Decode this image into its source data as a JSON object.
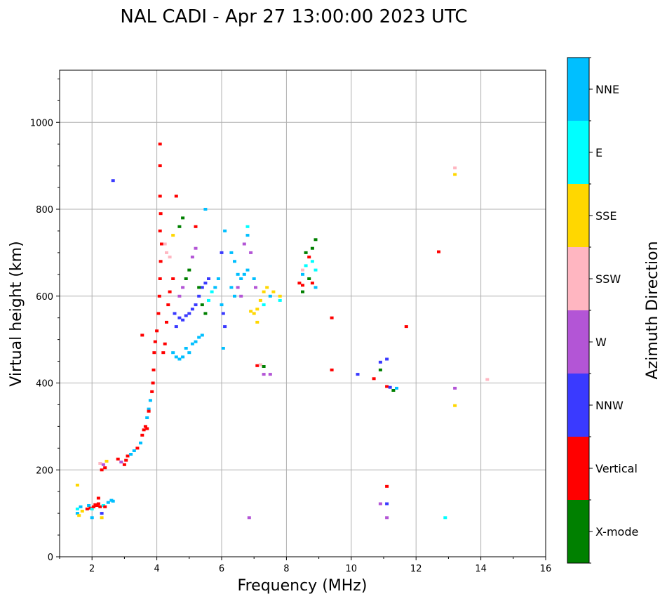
{
  "chart_data": {
    "type": "scatter",
    "title": "NAL CADI - Apr 27 13:00:00 2023 UTC",
    "xlabel": "Frequency (MHz)",
    "ylabel": "Virtual height (km)",
    "xlim": [
      1,
      16
    ],
    "ylim": [
      0,
      1120
    ],
    "xticks": [
      2,
      4,
      6,
      8,
      10,
      12,
      14,
      16
    ],
    "yticks": [
      0,
      200,
      400,
      600,
      800,
      1000
    ],
    "grid": true,
    "colorbar": {
      "label": "Azimuth Direction",
      "categories": [
        "X-mode",
        "Vertical",
        "NNW",
        "W",
        "SSW",
        "SSE",
        "E",
        "NNE"
      ],
      "colors": [
        "#008000",
        "#ff0000",
        "#3a3aff",
        "#b355d6",
        "#ffb6c1",
        "#ffd700",
        "#00ffff",
        "#00bfff"
      ]
    },
    "points": [
      [
        1.55,
        100,
        "NNE"
      ],
      [
        1.55,
        110,
        "E"
      ],
      [
        1.6,
        95,
        "SSE"
      ],
      [
        1.65,
        115,
        "NNE"
      ],
      [
        1.7,
        105,
        "SSE"
      ],
      [
        1.55,
        165,
        "SSE"
      ],
      [
        1.85,
        110,
        "Vertical"
      ],
      [
        1.9,
        118,
        "NNE"
      ],
      [
        1.95,
        112,
        "Vertical"
      ],
      [
        2.0,
        110,
        "E"
      ],
      [
        2.05,
        115,
        "Vertical"
      ],
      [
        2.1,
        120,
        "Vertical"
      ],
      [
        2.15,
        118,
        "Vertical"
      ],
      [
        2.2,
        122,
        "Vertical"
      ],
      [
        2.25,
        115,
        "Vertical"
      ],
      [
        2.3,
        100,
        "NNW"
      ],
      [
        2.35,
        118,
        "E"
      ],
      [
        2.4,
        115,
        "Vertical"
      ],
      [
        2.5,
        125,
        "NNE"
      ],
      [
        2.6,
        130,
        "NNE"
      ],
      [
        2.65,
        128,
        "NNE"
      ],
      [
        2.0,
        90,
        "NNE"
      ],
      [
        2.3,
        90,
        "SSE"
      ],
      [
        2.2,
        135,
        "Vertical"
      ],
      [
        2.25,
        215,
        "SSW"
      ],
      [
        2.35,
        212,
        "W"
      ],
      [
        2.4,
        205,
        "Vertical"
      ],
      [
        2.45,
        220,
        "SSE"
      ],
      [
        2.3,
        200,
        "Vertical"
      ],
      [
        2.8,
        225,
        "Vertical"
      ],
      [
        2.9,
        218,
        "W"
      ],
      [
        3.0,
        212,
        "Vertical"
      ],
      [
        3.05,
        222,
        "Vertical"
      ],
      [
        3.1,
        232,
        "Vertical"
      ],
      [
        3.2,
        236,
        "NNE"
      ],
      [
        3.3,
        244,
        "NNE"
      ],
      [
        3.4,
        250,
        "Vertical"
      ],
      [
        3.5,
        262,
        "NNE"
      ],
      [
        3.55,
        280,
        "Vertical"
      ],
      [
        3.6,
        292,
        "Vertical"
      ],
      [
        3.65,
        300,
        "Vertical"
      ],
      [
        3.7,
        320,
        "NNE"
      ],
      [
        3.75,
        340,
        "NNE"
      ],
      [
        3.8,
        360,
        "NNE"
      ],
      [
        3.85,
        380,
        "Vertical"
      ],
      [
        3.88,
        400,
        "Vertical"
      ],
      [
        3.9,
        430,
        "Vertical"
      ],
      [
        3.92,
        470,
        "Vertical"
      ],
      [
        3.95,
        495,
        "Vertical"
      ],
      [
        3.55,
        510,
        "Vertical"
      ],
      [
        3.75,
        335,
        "Vertical"
      ],
      [
        3.7,
        295,
        "Vertical"
      ],
      [
        4.0,
        520,
        "Vertical"
      ],
      [
        4.05,
        560,
        "Vertical"
      ],
      [
        4.08,
        600,
        "Vertical"
      ],
      [
        4.1,
        640,
        "Vertical"
      ],
      [
        4.12,
        680,
        "Vertical"
      ],
      [
        4.15,
        720,
        "Vertical"
      ],
      [
        4.1,
        750,
        "Vertical"
      ],
      [
        4.12,
        790,
        "Vertical"
      ],
      [
        4.1,
        830,
        "Vertical"
      ],
      [
        4.1,
        900,
        "Vertical"
      ],
      [
        4.1,
        950,
        "Vertical"
      ],
      [
        4.2,
        470,
        "Vertical"
      ],
      [
        4.25,
        490,
        "Vertical"
      ],
      [
        4.3,
        540,
        "Vertical"
      ],
      [
        4.35,
        580,
        "Vertical"
      ],
      [
        4.4,
        610,
        "Vertical"
      ],
      [
        4.3,
        700,
        "SSW"
      ],
      [
        4.4,
        690,
        "SSW"
      ],
      [
        4.25,
        720,
        "SSW"
      ],
      [
        4.5,
        640,
        "Vertical"
      ],
      [
        4.55,
        560,
        "NNW"
      ],
      [
        4.6,
        530,
        "NNW"
      ],
      [
        4.5,
        470,
        "NNE"
      ],
      [
        4.6,
        460,
        "NNE"
      ],
      [
        4.7,
        455,
        "NNE"
      ],
      [
        4.8,
        460,
        "NNE"
      ],
      [
        4.9,
        480,
        "NNE"
      ],
      [
        5.0,
        470,
        "NNE"
      ],
      [
        5.1,
        490,
        "NNE"
      ],
      [
        5.2,
        495,
        "NNE"
      ],
      [
        5.3,
        505,
        "NNE"
      ],
      [
        5.4,
        510,
        "NNE"
      ],
      [
        4.7,
        550,
        "NNW"
      ],
      [
        4.8,
        545,
        "NNW"
      ],
      [
        4.9,
        555,
        "NNW"
      ],
      [
        5.0,
        560,
        "NNW"
      ],
      [
        5.1,
        570,
        "NNW"
      ],
      [
        5.2,
        580,
        "NNW"
      ],
      [
        5.3,
        600,
        "NNW"
      ],
      [
        5.4,
        620,
        "NNW"
      ],
      [
        5.5,
        630,
        "NNW"
      ],
      [
        5.6,
        640,
        "NNW"
      ],
      [
        4.7,
        600,
        "W"
      ],
      [
        4.8,
        620,
        "W"
      ],
      [
        4.9,
        640,
        "X-mode"
      ],
      [
        5.0,
        660,
        "X-mode"
      ],
      [
        5.1,
        690,
        "W"
      ],
      [
        5.2,
        710,
        "W"
      ],
      [
        5.3,
        620,
        "X-mode"
      ],
      [
        5.4,
        580,
        "X-mode"
      ],
      [
        5.5,
        560,
        "X-mode"
      ],
      [
        5.6,
        590,
        "E"
      ],
      [
        5.7,
        610,
        "E"
      ],
      [
        5.8,
        620,
        "NNE"
      ],
      [
        5.9,
        640,
        "NNE"
      ],
      [
        6.0,
        580,
        "NNE"
      ],
      [
        6.05,
        560,
        "NNW"
      ],
      [
        6.1,
        530,
        "NNW"
      ],
      [
        6.05,
        480,
        "NNE"
      ],
      [
        6.0,
        700,
        "NNW"
      ],
      [
        6.1,
        750,
        "NNE"
      ],
      [
        5.5,
        800,
        "NNE"
      ],
      [
        4.7,
        760,
        "X-mode"
      ],
      [
        4.8,
        780,
        "X-mode"
      ],
      [
        4.6,
        830,
        "Vertical"
      ],
      [
        4.5,
        740,
        "SSE"
      ],
      [
        5.2,
        760,
        "Vertical"
      ],
      [
        6.3,
        700,
        "NNE"
      ],
      [
        6.4,
        680,
        "NNE"
      ],
      [
        6.5,
        650,
        "NNE"
      ],
      [
        6.6,
        640,
        "NNE"
      ],
      [
        6.7,
        650,
        "NNE"
      ],
      [
        6.8,
        660,
        "NNE"
      ],
      [
        6.5,
        620,
        "W"
      ],
      [
        6.6,
        600,
        "W"
      ],
      [
        6.7,
        720,
        "W"
      ],
      [
        6.8,
        740,
        "NNE"
      ],
      [
        6.9,
        700,
        "W"
      ],
      [
        7.0,
        640,
        "NNE"
      ],
      [
        7.05,
        620,
        "W"
      ],
      [
        6.8,
        760,
        "E"
      ],
      [
        6.3,
        620,
        "NNE"
      ],
      [
        6.4,
        600,
        "NNE"
      ],
      [
        6.9,
        565,
        "SSE"
      ],
      [
        7.0,
        560,
        "SSE"
      ],
      [
        7.1,
        570,
        "SSE"
      ],
      [
        7.2,
        590,
        "SSE"
      ],
      [
        7.3,
        610,
        "SSE"
      ],
      [
        7.4,
        620,
        "SSE"
      ],
      [
        7.5,
        600,
        "NNE"
      ],
      [
        7.6,
        610,
        "SSE"
      ],
      [
        7.8,
        600,
        "SSE"
      ],
      [
        7.8,
        590,
        "E"
      ],
      [
        7.3,
        580,
        "E"
      ],
      [
        7.1,
        540,
        "SSE"
      ],
      [
        7.1,
        440,
        "Vertical"
      ],
      [
        7.2,
        442,
        "SSW"
      ],
      [
        7.3,
        438,
        "X-mode"
      ],
      [
        7.3,
        420,
        "W"
      ],
      [
        7.5,
        420,
        "W"
      ],
      [
        6.85,
        90,
        "W"
      ],
      [
        8.5,
        610,
        "X-mode"
      ],
      [
        8.5,
        625,
        "Vertical"
      ],
      [
        8.5,
        650,
        "NNE"
      ],
      [
        8.6,
        670,
        "E"
      ],
      [
        8.7,
        690,
        "Vertical"
      ],
      [
        8.8,
        710,
        "X-mode"
      ],
      [
        8.9,
        730,
        "X-mode"
      ],
      [
        8.8,
        680,
        "E"
      ],
      [
        8.7,
        640,
        "X-mode"
      ],
      [
        8.9,
        660,
        "E"
      ],
      [
        8.6,
        700,
        "X-mode"
      ],
      [
        8.4,
        630,
        "Vertical"
      ],
      [
        8.8,
        630,
        "Vertical"
      ],
      [
        8.9,
        620,
        "NNE"
      ],
      [
        8.5,
        660,
        "SSW"
      ],
      [
        9.4,
        550,
        "Vertical"
      ],
      [
        9.4,
        430,
        "Vertical"
      ],
      [
        10.2,
        420,
        "NNW"
      ],
      [
        10.7,
        410,
        "Vertical"
      ],
      [
        10.9,
        430,
        "X-mode"
      ],
      [
        10.9,
        448,
        "NNW"
      ],
      [
        11.1,
        455,
        "NNW"
      ],
      [
        11.1,
        392,
        "Vertical"
      ],
      [
        11.2,
        390,
        "NNW"
      ],
      [
        11.3,
        383,
        "X-mode"
      ],
      [
        11.4,
        388,
        "NNE"
      ],
      [
        11.7,
        530,
        "Vertical"
      ],
      [
        11.1,
        162,
        "Vertical"
      ],
      [
        10.9,
        122,
        "W"
      ],
      [
        11.1,
        122,
        "NNW"
      ],
      [
        11.1,
        90,
        "W"
      ],
      [
        12.7,
        702,
        "Vertical"
      ],
      [
        13.2,
        895,
        "SSW"
      ],
      [
        13.2,
        880,
        "SSE"
      ],
      [
        13.2,
        388,
        "W"
      ],
      [
        13.2,
        348,
        "SSE"
      ],
      [
        14.2,
        408,
        "SSW"
      ],
      [
        12.9,
        90,
        "E"
      ],
      [
        2.65,
        866,
        "NNW"
      ]
    ]
  }
}
